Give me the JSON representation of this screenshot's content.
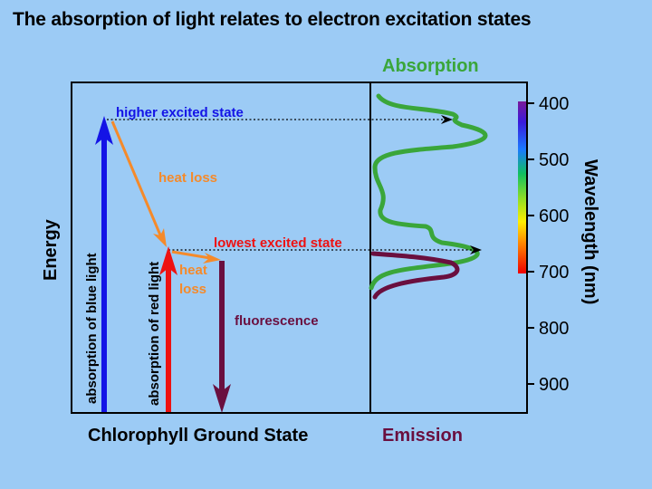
{
  "title": "The absorption of light relates to electron excitation states",
  "labels": {
    "absorption_header": "Absorption",
    "emission_footer": "Emission",
    "ground_state": "Chlorophyll Ground State",
    "energy_axis": "Energy",
    "wavelength_axis": "Wavelength (nm)",
    "higher_excited_state": "higher excited state",
    "lowest_excited_state": "lowest excited state",
    "heat_loss_1": "heat loss",
    "heat_loss_2a": "heat",
    "heat_loss_2b": "loss",
    "fluorescence": "fluorescence",
    "absorption_blue": "absorption of blue light",
    "absorption_red": "absorption of red light"
  },
  "wavelength_ticks": [
    "400",
    "500",
    "600",
    "700",
    "800",
    "900"
  ],
  "colors": {
    "background": "#9ccbf5",
    "absorption": "#3aa63a",
    "emission": "#6a0f3f",
    "blue_arrow": "#1414e6",
    "red_arrow": "#ee1111",
    "heat_arrow": "#f58a2a",
    "higher_state_text": "#1414e6",
    "lowest_state_text": "#ee1111",
    "heat_text": "#f58a2a"
  }
}
